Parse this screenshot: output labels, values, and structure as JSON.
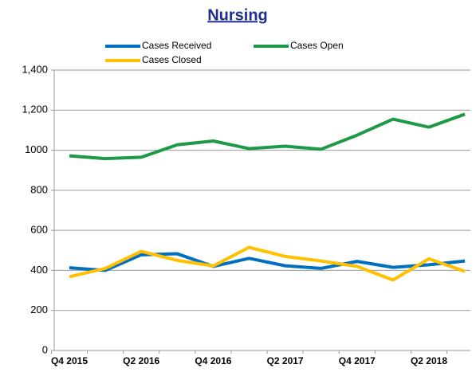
{
  "chart_data": {
    "type": "line",
    "title": "Nursing",
    "categories": [
      "Q4 2015",
      null,
      "Q2 2016",
      null,
      "Q4 2016",
      null,
      "Q2 2017",
      null,
      "Q4 2017",
      null,
      "Q2 2018",
      null
    ],
    "series": [
      {
        "name": "Cases Received",
        "color": "#0070c0",
        "values": [
          413,
          400,
          478,
          483,
          420,
          460,
          423,
          410,
          445,
          415,
          428,
          447
        ]
      },
      {
        "name": "Cases Open",
        "color": "#1e9a46",
        "values": [
          972,
          958,
          965,
          1027,
          1046,
          1008,
          1020,
          1005,
          1075,
          1155,
          1115,
          1180
        ]
      },
      {
        "name": "Cases Closed",
        "color": "#ffc000",
        "values": [
          368,
          410,
          495,
          450,
          422,
          515,
          470,
          447,
          420,
          352,
          458,
          395
        ]
      }
    ],
    "ylim": [
      0,
      1400
    ],
    "yticks": [
      0,
      200,
      400,
      600,
      800,
      1000,
      {
        "value": 1200,
        "label": "1,200"
      },
      {
        "value": 1400,
        "label": "1,400"
      }
    ],
    "grid": true,
    "legend": "top"
  }
}
